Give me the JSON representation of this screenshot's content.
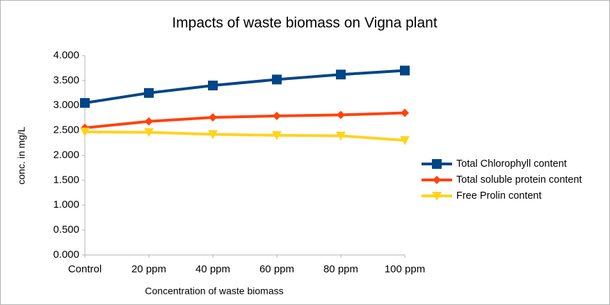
{
  "chart_data": {
    "type": "line",
    "title": "Impacts of waste biomass on Vigna plant",
    "x_label": "Concentration of waste biomass",
    "y_label": "conc. in mg/L",
    "categories": [
      "Control",
      "20 ppm",
      "40 ppm",
      "60 ppm",
      "80 ppm",
      "100 ppm"
    ],
    "series": [
      {
        "name": "Total Chlorophyll content",
        "color": "#004586",
        "marker": "square",
        "values": [
          3.05,
          3.25,
          3.4,
          3.52,
          3.62,
          3.7
        ]
      },
      {
        "name": "Total soluble protein content",
        "color": "#ff420e",
        "marker": "diamond",
        "values": [
          2.55,
          2.68,
          2.76,
          2.79,
          2.81,
          2.85
        ]
      },
      {
        "name": "Free Prolin content",
        "color": "#ffd320",
        "marker": "triangle-down",
        "values": [
          2.47,
          2.46,
          2.42,
          2.4,
          2.39,
          2.3
        ]
      }
    ],
    "ylim": [
      0,
      4
    ],
    "yticks": [
      {
        "value": 0,
        "label": "0.000"
      },
      {
        "value": 0.5,
        "label": "0.500"
      },
      {
        "value": 1,
        "label": "1.000"
      },
      {
        "value": 1.5,
        "label": "1.500"
      },
      {
        "value": 2,
        "label": "2.000"
      },
      {
        "value": 2.5,
        "label": "2.500"
      },
      {
        "value": 3,
        "label": "3.000"
      },
      {
        "value": 3.5,
        "label": "3.500"
      },
      {
        "value": 4,
        "label": "4.000"
      }
    ],
    "grid": false,
    "legend": "right"
  }
}
